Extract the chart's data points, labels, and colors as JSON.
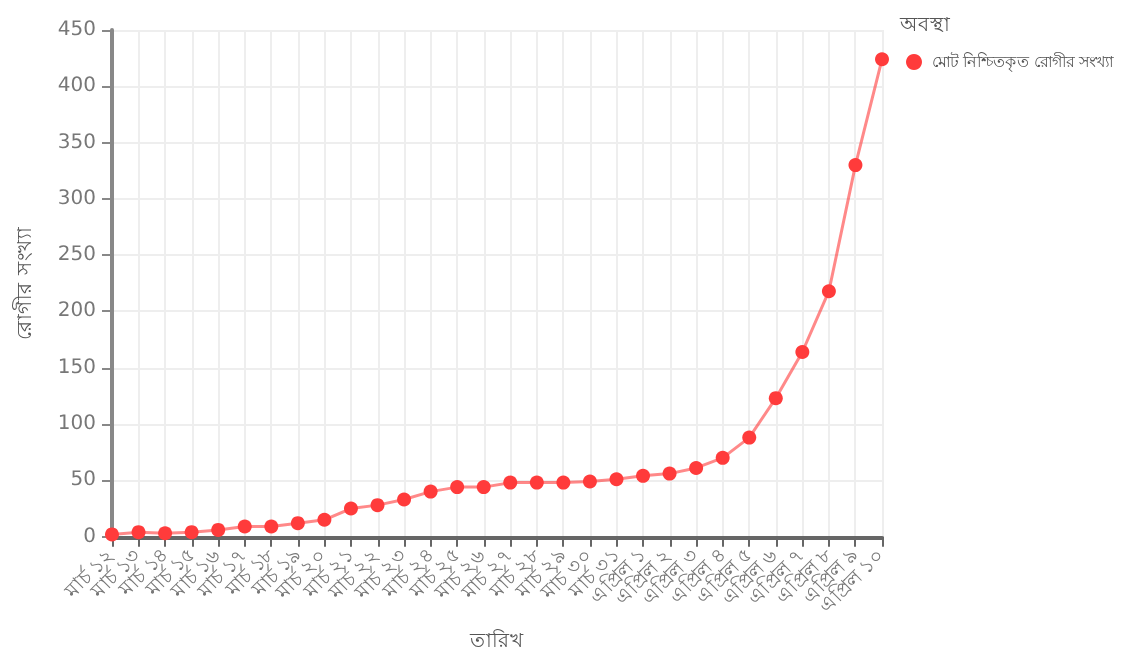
{
  "chart_data": {
    "type": "line",
    "xlabel": "তারিখ",
    "ylabel": "রোগীর সংখ্যা",
    "legend_title": "অবস্থা",
    "categories": [
      "মার্চ ১২",
      "মার্চ ১৩",
      "মার্চ ১৪",
      "মার্চ ১৫",
      "মার্চ ১৬",
      "মার্চ ১৭",
      "মার্চ ১৮",
      "মার্চ ১৯",
      "মার্চ ২০",
      "মার্চ ২১",
      "মার্চ ২২",
      "মার্চ ২৩",
      "মার্চ ২৪",
      "মার্চ ২৫",
      "মার্চ ২৬",
      "মার্চ ২৭",
      "মার্চ ২৮",
      "মার্চ ২৯",
      "মার্চ ৩০",
      "মার্চ ৩১",
      "এপ্রিল ১",
      "এপ্রিল ২",
      "এপ্রিল ৩",
      "এপ্রিল ৪",
      "এপ্রিল ৫",
      "এপ্রিল ৬",
      "এপ্রিল ৭",
      "এপ্রিল ৮",
      "এপ্রিল ৯",
      "এপ্রিল ১০"
    ],
    "series": [
      {
        "name": "মোট নিশ্চিতকৃত রোগীর সংখ্যা",
        "color": "#ff3b3b",
        "values": [
          2,
          4,
          3,
          4,
          6,
          9,
          9,
          12,
          15,
          25,
          28,
          33,
          40,
          44,
          44,
          48,
          48,
          48,
          49,
          51,
          54,
          56,
          61,
          70,
          88,
          123,
          164,
          218,
          330,
          424
        ]
      }
    ],
    "ylim": [
      0,
      450
    ],
    "yticks": [
      0,
      50,
      100,
      150,
      200,
      250,
      300,
      350,
      400,
      450
    ],
    "grid": true,
    "legend": "top right",
    "marker": "circle",
    "line_style": "solid"
  }
}
